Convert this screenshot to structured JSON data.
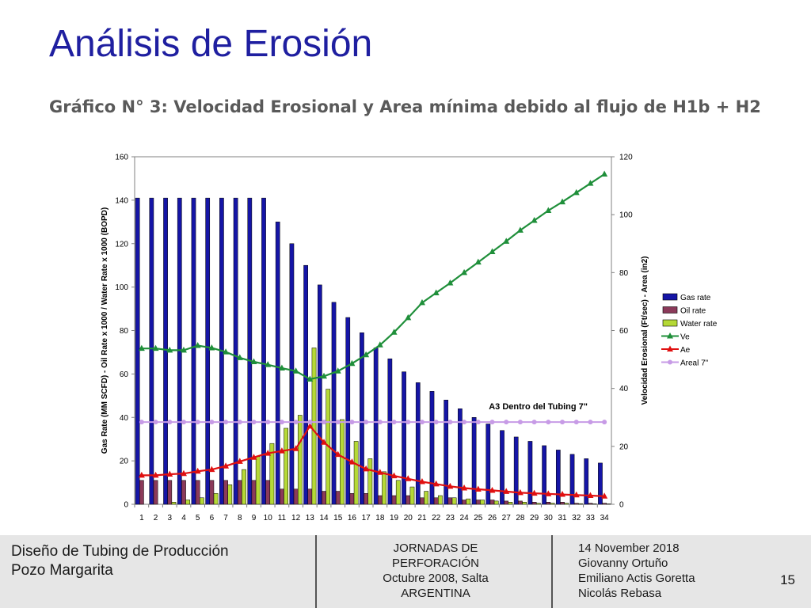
{
  "slide": {
    "title": "Análisis de Erosión",
    "subtitle": "Gráfico N° 3: Velocidad Erosional y Area mínima debido al flujo de H1b + H2",
    "page_number": "15"
  },
  "footer": {
    "left": [
      "Diseño de Tubing de Producción",
      "Pozo Margarita"
    ],
    "middle": [
      "JORNADAS DE",
      "PERFORACIÓN",
      "Octubre 2008, Salta",
      "ARGENTINA"
    ],
    "right": [
      "14 November 2018",
      "Giovanny Ortuño",
      "Emiliano Actis Goretta",
      "Nicolás Rebasa"
    ]
  },
  "colors": {
    "gas": "#1515a6",
    "oil": "#8b3a5a",
    "water": "#b5d936",
    "ve": "#1f8f3a",
    "ae": "#e01010",
    "areal": "#c79be6",
    "title": "#1f1fa0"
  },
  "chart_data": {
    "type": "bar",
    "categories": [
      "1",
      "2",
      "3",
      "4",
      "5",
      "6",
      "7",
      "8",
      "9",
      "10",
      "11",
      "12",
      "13",
      "14",
      "15",
      "16",
      "17",
      "18",
      "19",
      "20",
      "21",
      "22",
      "23",
      "24",
      "25",
      "26",
      "27",
      "28",
      "29",
      "30",
      "31",
      "32",
      "33",
      "34"
    ],
    "ylabel": "Gas Rate (MM SCFD) - Oil Rate x 1000 / Water Rate x 1000 (BOPD)",
    "y2label": "Velocidad Erosional (Ft/sec) - Area (in2)",
    "ylim": [
      0,
      160
    ],
    "yticks": [
      0,
      20,
      40,
      60,
      80,
      100,
      120,
      140,
      160
    ],
    "y2lim": [
      0,
      120
    ],
    "y2ticks": [
      0,
      20,
      40,
      60,
      80,
      100,
      120
    ],
    "annotation": "A3 Dentro del Tubing 7\"",
    "legend_position": "right",
    "series": [
      {
        "name": "Gas rate",
        "kind": "bar",
        "axis": "left",
        "values": [
          141,
          141,
          141,
          141,
          141,
          141,
          141,
          141,
          141,
          141,
          130,
          120,
          110,
          101,
          93,
          86,
          79,
          72,
          67,
          61,
          56,
          52,
          48,
          44,
          40,
          37,
          34,
          31,
          29,
          27,
          25,
          23,
          21,
          19
        ]
      },
      {
        "name": "Oil rate",
        "kind": "bar",
        "axis": "left",
        "values": [
          11,
          11,
          11,
          11,
          11,
          11,
          11,
          11,
          11,
          11,
          7,
          7,
          7,
          6,
          6,
          5,
          5,
          4,
          4,
          4,
          3,
          3,
          3,
          2,
          2,
          2,
          1.5,
          1.5,
          1,
          1,
          1,
          0.5,
          0.5,
          0.5
        ]
      },
      {
        "name": "Water rate",
        "kind": "bar",
        "axis": "left",
        "values": [
          0,
          0,
          1,
          2,
          3,
          5,
          9,
          16,
          22,
          28,
          35,
          41,
          72,
          53,
          39,
          29,
          21,
          15,
          11,
          8,
          6,
          4,
          3,
          2.5,
          2,
          1.5,
          1,
          1,
          0.5,
          0.5,
          0.5,
          0.3,
          0.2,
          0.2
        ]
      },
      {
        "name": "Ve",
        "kind": "line",
        "axis": "right",
        "marker": "triangle",
        "values": [
          53.8,
          53.8,
          53.2,
          53.2,
          54.8,
          54,
          52.6,
          50.6,
          49.2,
          48.2,
          47,
          46,
          43.2,
          44.2,
          46,
          48.6,
          51.6,
          55,
          59.4,
          64.4,
          69.6,
          73,
          76.4,
          80,
          83.6,
          87.2,
          90.8,
          94.6,
          98,
          101.4,
          104.4,
          107.6,
          110.8,
          114
        ]
      },
      {
        "name": "Ae",
        "kind": "line",
        "axis": "right",
        "marker": "triangle",
        "values": [
          10,
          10,
          10.4,
          10.6,
          11.4,
          12,
          13.2,
          14.8,
          16.2,
          17.6,
          18.4,
          19.2,
          27,
          21.4,
          17.2,
          14.6,
          12.2,
          11,
          9.8,
          8.8,
          7.8,
          7,
          6.2,
          5.6,
          5.2,
          4.8,
          4.4,
          4,
          3.8,
          3.6,
          3.4,
          3.2,
          3,
          2.8
        ]
      },
      {
        "name": "Areal 7\"",
        "kind": "line",
        "axis": "right",
        "marker": "circle",
        "values": [
          28.4,
          28.4,
          28.4,
          28.4,
          28.4,
          28.4,
          28.4,
          28.4,
          28.4,
          28.4,
          28.4,
          28.4,
          28.4,
          28.4,
          28.4,
          28.4,
          28.4,
          28.4,
          28.4,
          28.4,
          28.4,
          28.4,
          28.4,
          28.4,
          28.4,
          28.4,
          28.4,
          28.4,
          28.4,
          28.4,
          28.4,
          28.4,
          28.4,
          28.4
        ]
      }
    ]
  }
}
